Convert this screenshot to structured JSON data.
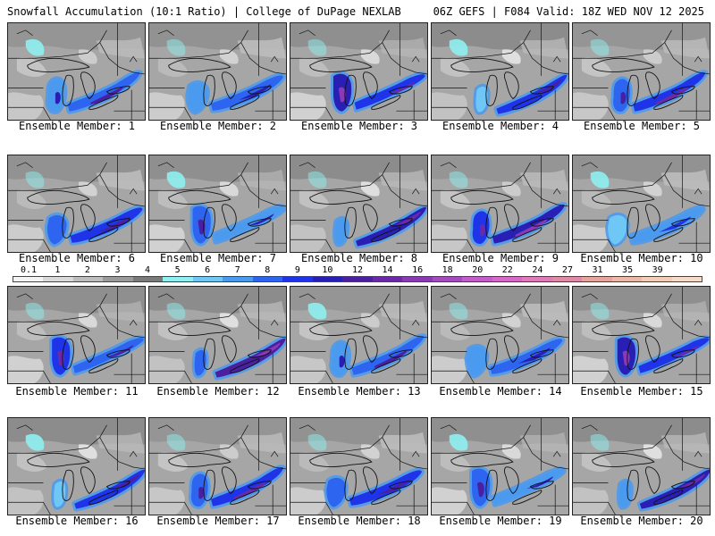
{
  "header": {
    "title": "Snowfall Accumulation (10:1 Ratio) | College of DuPage NEXLAB",
    "run_info": "06Z GEFS | F084 Valid: 18Z WED NOV 12 2025"
  },
  "colorbar": {
    "labels": [
      "0.1",
      "1",
      "2",
      "3",
      "4",
      "5",
      "6",
      "7",
      "8",
      "9",
      "10",
      "12",
      "14",
      "16",
      "18",
      "20",
      "22",
      "24",
      "27",
      "31",
      "35",
      "39"
    ],
    "colors": [
      "#f4f4f4",
      "#d9d9d9",
      "#bdbdbd",
      "#9a9a9a",
      "#7a7a7a",
      "#8ef0f0",
      "#6ec7f5",
      "#4a9af0",
      "#2d64f0",
      "#1f33e8",
      "#2a1fb4",
      "#4a1fa0",
      "#6a2aa8",
      "#8a3ab5",
      "#a54bc0",
      "#c45ccc",
      "#d868c8",
      "#e07ab8",
      "#e08aa6",
      "#e6a49a",
      "#ecb8a8",
      "#f2cdb8",
      "#f6dcc8"
    ]
  },
  "members": [
    {
      "caption": "Ensemble Member: 1"
    },
    {
      "caption": "Ensemble Member: 2"
    },
    {
      "caption": "Ensemble Member: 3"
    },
    {
      "caption": "Ensemble Member: 4"
    },
    {
      "caption": "Ensemble Member: 5"
    },
    {
      "caption": "Ensemble Member: 6"
    },
    {
      "caption": "Ensemble Member: 7"
    },
    {
      "caption": "Ensemble Member: 8"
    },
    {
      "caption": "Ensemble Member: 9"
    },
    {
      "caption": "Ensemble Member: 10"
    },
    {
      "caption": "Ensemble Member: 11"
    },
    {
      "caption": "Ensemble Member: 12"
    },
    {
      "caption": "Ensemble Member: 13"
    },
    {
      "caption": "Ensemble Member: 14"
    },
    {
      "caption": "Ensemble Member: 15"
    },
    {
      "caption": "Ensemble Member: 16"
    },
    {
      "caption": "Ensemble Member: 17"
    },
    {
      "caption": "Ensemble Member: 18"
    },
    {
      "caption": "Ensemble Member: 19"
    },
    {
      "caption": "Ensemble Member: 20"
    }
  ]
}
